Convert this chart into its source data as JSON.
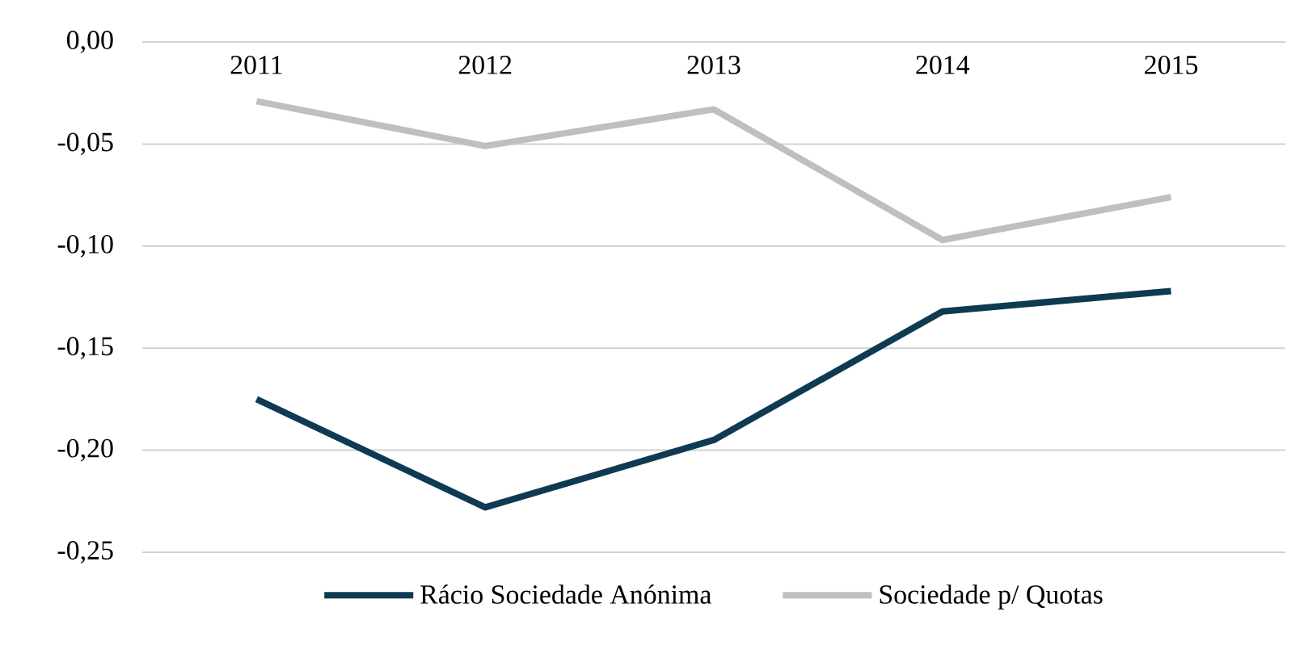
{
  "chart_data": {
    "type": "line",
    "categories": [
      "2011",
      "2012",
      "2013",
      "2014",
      "2015"
    ],
    "series": [
      {
        "name": "Rácio Sociedade Anónima",
        "color": "#0e3a52",
        "values": [
          -0.175,
          -0.228,
          -0.195,
          -0.132,
          -0.122
        ]
      },
      {
        "name": "Sociedade p/ Quotas",
        "color": "#bfbfbf",
        "values": [
          -0.029,
          -0.051,
          -0.033,
          -0.097,
          -0.076
        ]
      }
    ],
    "ylim": [
      -0.25,
      0
    ],
    "yticks": [
      {
        "value": 0,
        "label": "0,00"
      },
      {
        "value": -0.05,
        "label": "-0,05"
      },
      {
        "value": -0.1,
        "label": "-0,10"
      },
      {
        "value": -0.15,
        "label": "-0,15"
      },
      {
        "value": -0.2,
        "label": "-0,20"
      },
      {
        "value": -0.25,
        "label": "-0,25"
      }
    ],
    "grid": "y",
    "legend": "bottom",
    "marker": "none",
    "line_style": "solid"
  }
}
